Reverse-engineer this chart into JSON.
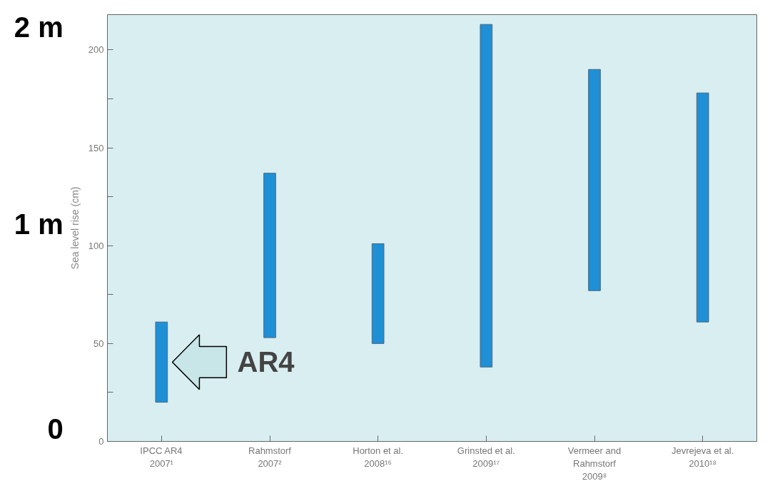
{
  "chart_data": {
    "type": "bar",
    "ylabel": "Sea level rise (cm)",
    "categories": [
      "IPCC AR4\n2007¹",
      "Rahmstorf\n2007²",
      "Horton et al.\n2008¹⁶",
      "Grinsted et al.\n2009¹⁷",
      "Vermeer and\nRahmstorf\n2009⁸",
      "Jevrejeva et al.\n2010¹⁸"
    ],
    "base": [
      20,
      53,
      50,
      38,
      77,
      61
    ],
    "values": [
      41,
      84,
      51,
      175,
      113,
      117
    ],
    "color": "#1f8fd6",
    "ylim": [
      0,
      218
    ],
    "yticks": [
      0,
      {
        "value": 25,
        "label": null
      },
      50,
      {
        "value": 75,
        "label": null
      },
      100,
      {
        "value": 125,
        "label": null
      },
      150,
      {
        "value": 175,
        "label": null
      },
      200
    ],
    "grid": false,
    "annotations": [
      "2 m",
      "1 m",
      "0",
      "AR4"
    ]
  }
}
